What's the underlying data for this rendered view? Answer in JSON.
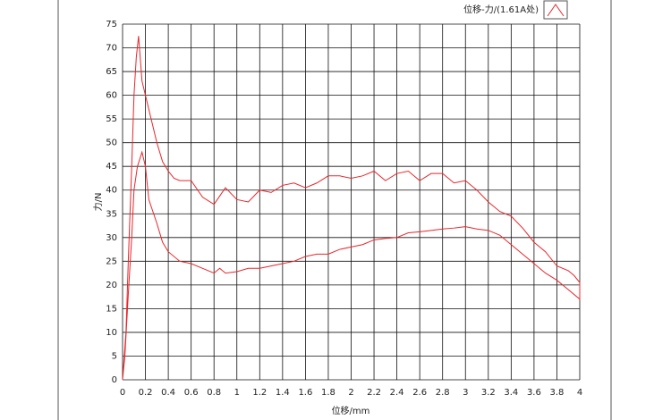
{
  "chart_data": {
    "type": "line",
    "xlabel": "位移/mm",
    "ylabel": "力/N",
    "x": [
      0,
      0.02,
      0.05,
      0.08,
      0.1,
      0.13,
      0.17,
      0.2,
      0.23,
      0.3,
      0.35,
      0.4,
      0.5,
      0.6,
      0.7,
      0.8,
      0.85,
      0.9,
      1,
      1.1,
      1.2,
      1.3,
      1.4,
      1.5,
      1.6,
      1.7,
      1.8,
      1.9,
      2,
      2.1,
      2.2,
      2.3,
      2.4,
      2.5,
      2.6,
      2.7,
      2.8,
      2.9,
      3,
      3.1,
      3.2,
      3.3,
      3.4,
      3.5,
      3.6,
      3.7,
      3.8,
      3.9,
      4,
      4,
      3.95,
      3.9,
      3.8,
      3.7,
      3.6,
      3.5,
      3.4,
      3.3,
      3.2,
      3.1,
      3,
      2.9,
      2.8,
      2.7,
      2.6,
      2.5,
      2.4,
      2.3,
      2.2,
      2.1,
      2,
      1.9,
      1.8,
      1.7,
      1.6,
      1.5,
      1.4,
      1.3,
      1.2,
      1.1,
      1,
      0.9,
      0.8,
      0.7,
      0.6,
      0.5,
      0.45,
      0.4,
      0.35,
      0.3,
      0.25,
      0.2,
      0.17,
      0.14,
      0.12,
      0.1,
      0.08,
      0.05,
      0.03,
      0
    ],
    "series": [
      {
        "name": "位移-力/(1.61A处)",
        "color": "#e8262b",
        "values": [
          0,
          5,
          18,
          30,
          40,
          45,
          48,
          45,
          38,
          33,
          29,
          27,
          25,
          24.5,
          23.5,
          22.5,
          23.5,
          22.5,
          22.8,
          23.5,
          23.5,
          24,
          24.5,
          25,
          26,
          26.5,
          26.5,
          27.5,
          28,
          28.5,
          29.5,
          29.8,
          30,
          31,
          31.2,
          31.5,
          31.8,
          32,
          32.3,
          31.8,
          31.5,
          30.5,
          28.5,
          26.5,
          24.5,
          22.5,
          21,
          19,
          17,
          20.5,
          22,
          23,
          24,
          27,
          29,
          32,
          34.5,
          35.5,
          37.5,
          40,
          42,
          41.5,
          43.5,
          43.5,
          42,
          44,
          43.5,
          42,
          44,
          43,
          42.5,
          43,
          43,
          41.5,
          40.5,
          41.5,
          41,
          39.5,
          40,
          37.5,
          38,
          40.5,
          37,
          38.5,
          42,
          42,
          42.5,
          44,
          46,
          50,
          55,
          60,
          63,
          72.5,
          68,
          60,
          45,
          25,
          10,
          0
        ]
      }
    ],
    "xlim": [
      0,
      4
    ],
    "xticks": [
      0,
      0.2,
      0.4,
      0.6,
      0.8,
      1,
      1.2,
      1.4,
      1.6,
      1.8,
      2,
      2.2,
      2.4,
      2.6,
      2.8,
      3,
      3.2,
      3.4,
      3.6,
      3.8,
      4
    ],
    "ylim": [
      0,
      75
    ],
    "yticks": [
      0,
      5,
      10,
      15,
      20,
      25,
      30,
      35,
      40,
      45,
      50,
      55,
      60,
      65,
      70,
      75
    ],
    "grid": true,
    "legend": "upper right"
  }
}
